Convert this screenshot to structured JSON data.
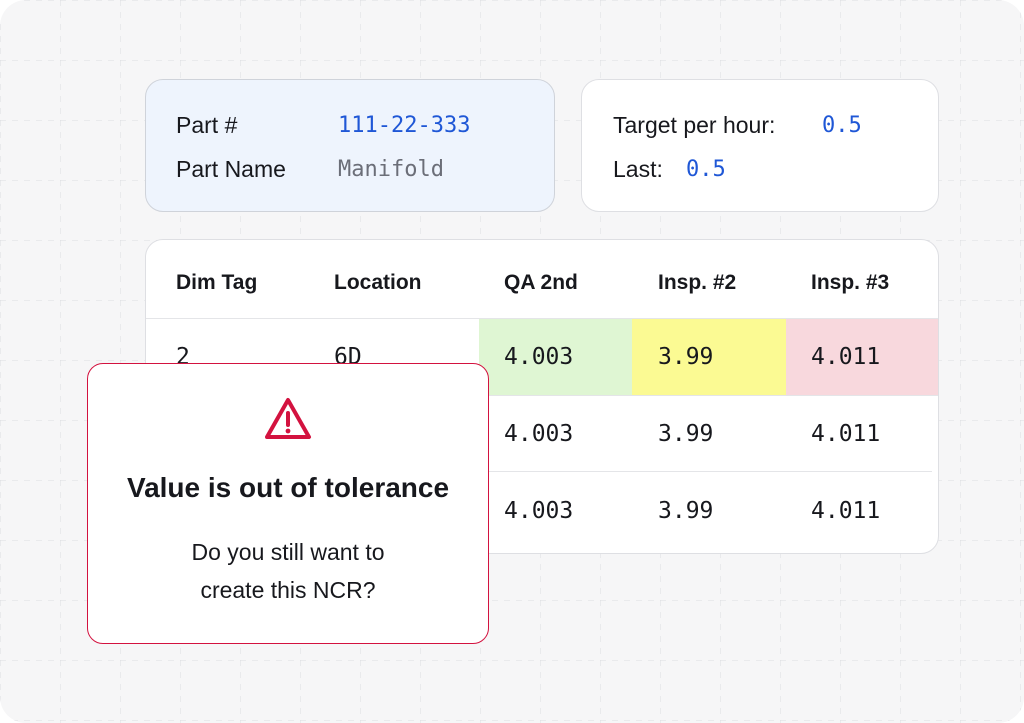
{
  "part_info": {
    "part_number_label": "Part #",
    "part_number_value": "111-22-333",
    "part_name_label": "Part Name",
    "part_name_value": "Manifold"
  },
  "target_info": {
    "target_label": "Target per hour:",
    "target_value": "0.5",
    "last_label": "Last:",
    "last_value": "0.5"
  },
  "table": {
    "headers": [
      "Dim Tag",
      "Location",
      "QA 2nd",
      "Insp. #2",
      "Insp. #3"
    ],
    "rows": [
      [
        "2",
        "6D",
        "4.003",
        "3.99",
        "4.011"
      ],
      [
        "",
        "",
        "4.003",
        "3.99",
        "4.011"
      ],
      [
        "",
        "",
        "4.003",
        "3.99",
        "4.011"
      ]
    ],
    "row1_cell_status": [
      "",
      "",
      "in-tolerance",
      "warning",
      "out-of-tolerance"
    ]
  },
  "modal": {
    "icon": "warning-triangle-icon",
    "title": "Value is out of tolerance",
    "message_line1": "Do you still want to",
    "message_line2": "create this NCR?"
  },
  "colors": {
    "accent_blue": "#1f57d6",
    "in_tolerance": "#dff6d3",
    "warning": "#fbfa93",
    "out_of_tolerance": "#f8d8dd",
    "alert_red": "#d3123f"
  }
}
